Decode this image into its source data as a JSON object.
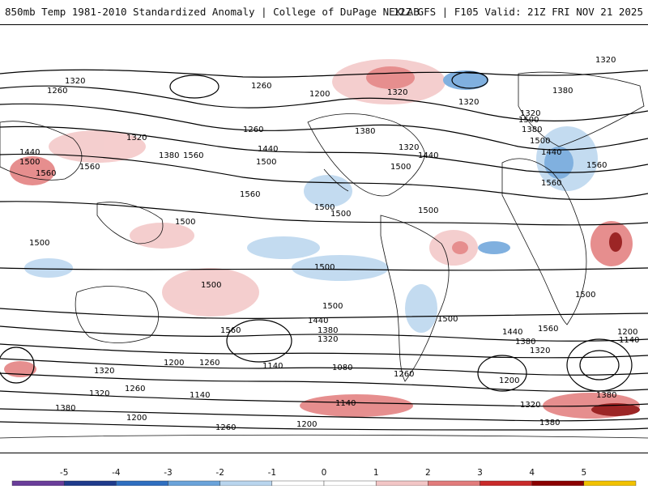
{
  "header": {
    "left": "850mb Temp 1981-2010 Standardized Anomaly | College of DuPage NEXLAB",
    "right": "12Z GFS | F105 Valid: 21Z FRI NOV 21 2025"
  },
  "colorbar": {
    "ticks": [
      "-5",
      "-4",
      "-3",
      "-2",
      "-1",
      "0",
      "1",
      "2",
      "3",
      "4",
      "5"
    ],
    "colors": [
      "#6a3d9a",
      "#1f3b8c",
      "#2f6fc0",
      "#6aa3da",
      "#b9d5ee",
      "#ffffff",
      "#ffffff",
      "#f3c6c6",
      "#e27b7b",
      "#c92a2a",
      "#8b0000",
      "#f2c200"
    ]
  },
  "contour_labels": [
    "1320",
    "1260",
    "1320",
    "1260",
    "1200",
    "1320",
    "1380",
    "1320",
    "1380",
    "1320",
    "1440",
    "1500",
    "1560",
    "1560",
    "1320",
    "1380",
    "1560",
    "1500",
    "1260",
    "1440",
    "1500",
    "1560",
    "1500",
    "1500",
    "1380",
    "1440",
    "1320",
    "1440",
    "1500",
    "1500",
    "1560",
    "1500",
    "1560",
    "1500",
    "1500",
    "1500",
    "1500",
    "1500",
    "1500",
    "1560",
    "1440",
    "1380",
    "1320",
    "1560",
    "1440",
    "1500",
    "1380",
    "1320",
    "1200",
    "1140",
    "1320",
    "1200",
    "1260",
    "1140",
    "1080",
    "1260",
    "1200",
    "1320",
    "1380",
    "1260",
    "1140",
    "1200",
    "1200",
    "1260",
    "1140",
    "1320",
    "1380",
    "1380"
  ]
}
